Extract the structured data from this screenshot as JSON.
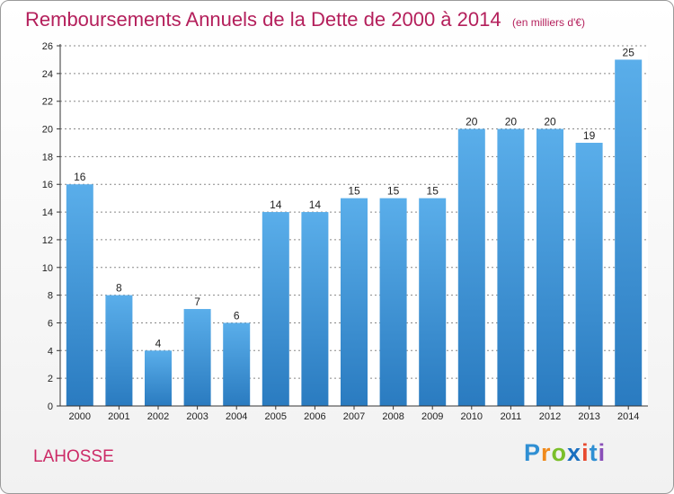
{
  "title": "Remboursements Annuels de la Dette de 2000 à 2014",
  "unit": "(en milliers d'€)",
  "commune": "LAHOSSE",
  "logo": {
    "letters": [
      "P",
      "r",
      "o",
      "x",
      "i",
      "t",
      "i"
    ],
    "colors": [
      "#2f8fd3",
      "#f08a1c",
      "#7bbf2a",
      "#1a6fbf",
      "#e84a2f",
      "#2f8fd3",
      "#8a4fb8"
    ]
  },
  "colors": {
    "title": "#b41f5b",
    "bar_top": "#5aaeea",
    "bar_bottom": "#2a7bc0",
    "grid": "#888888",
    "axis": "#333333"
  },
  "chart_data": {
    "type": "bar",
    "title": "Remboursements Annuels de la Dette de 2000 à 2014",
    "xlabel": "",
    "ylabel": "",
    "categories": [
      "2000",
      "2001",
      "2002",
      "2003",
      "2004",
      "2005",
      "2006",
      "2007",
      "2008",
      "2009",
      "2010",
      "2011",
      "2012",
      "2013",
      "2014"
    ],
    "values": [
      16,
      8,
      4,
      7,
      6,
      14,
      14,
      15,
      15,
      15,
      20,
      20,
      20,
      19,
      25
    ],
    "ylim": [
      0,
      26
    ],
    "yticks": [
      0,
      2,
      4,
      6,
      8,
      10,
      12,
      14,
      16,
      18,
      20,
      22,
      24,
      26
    ],
    "grid": true,
    "legend": "none"
  }
}
